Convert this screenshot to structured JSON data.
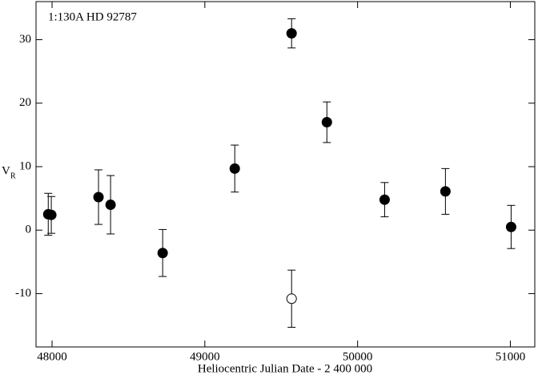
{
  "chart_data": {
    "type": "scatter",
    "annotation": "1:130A   HD 92787",
    "xlabel": "Heliocentric Julian Date - 2 400 000",
    "ylabel": [
      "V",
      "R"
    ],
    "xlim": [
      47895,
      51160
    ],
    "xticks": [
      48000,
      49000,
      50000,
      51000
    ],
    "ylim": [
      -18.4,
      36
    ],
    "yticks": [
      -10,
      0,
      10,
      20,
      30
    ],
    "series": [
      {
        "color": "#000000",
        "marker": "filled",
        "x": [
          47975,
          47995,
          48304,
          48383,
          48724,
          49196,
          49568,
          49799,
          50177,
          50575,
          51005
        ],
        "values": [
          2.5,
          2.4,
          5.2,
          4.0,
          -3.6,
          9.7,
          31.0,
          17.0,
          4.8,
          6.1,
          0.5
        ],
        "errors": [
          3.3,
          2.9,
          4.3,
          4.6,
          3.7,
          3.7,
          2.3,
          3.2,
          2.7,
          3.6,
          3.4
        ]
      },
      {
        "color": "#000000",
        "marker": "open",
        "x": [
          49568
        ],
        "values": [
          -10.8
        ],
        "errors": [
          4.5
        ]
      }
    ]
  }
}
